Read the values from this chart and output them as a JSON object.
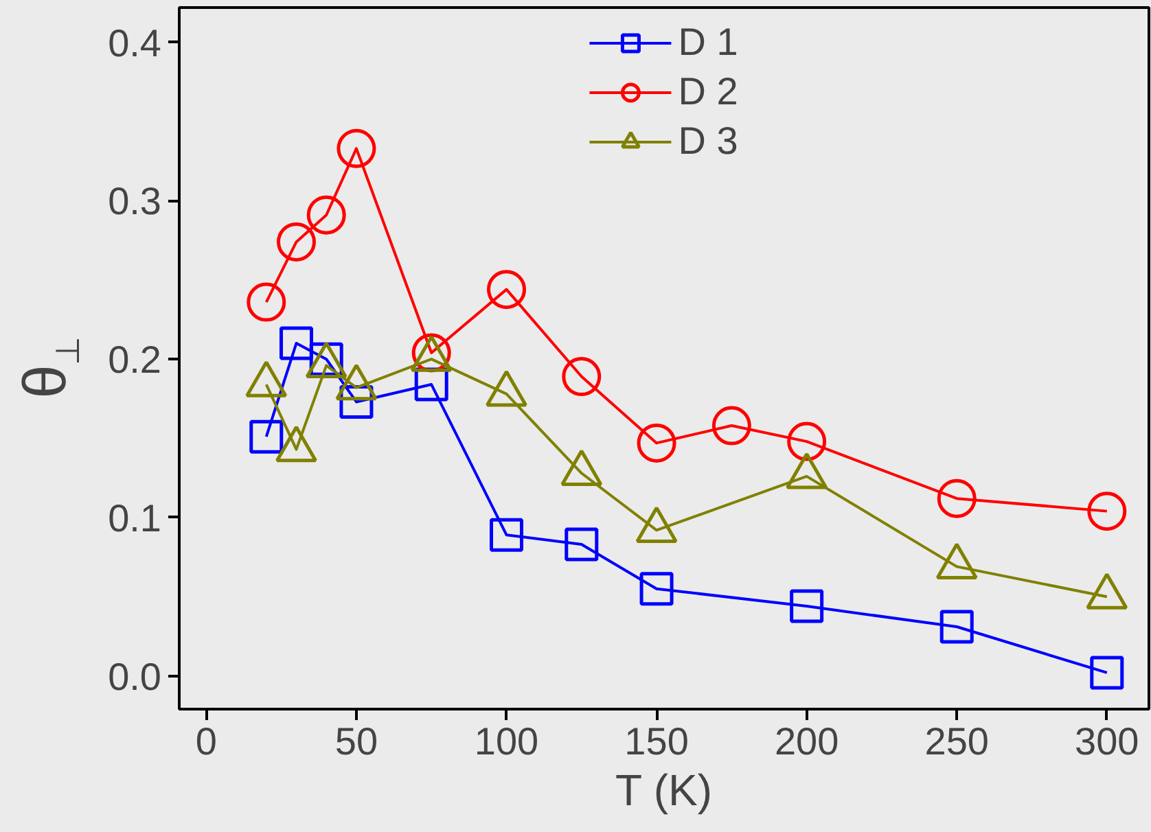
{
  "chart_data": {
    "type": "line",
    "xlabel": "T (K)",
    "ylabel": "θ$_{⊥}$",
    "x": [
      20,
      30,
      40,
      50,
      75,
      100,
      125,
      150,
      175,
      200,
      250,
      300
    ],
    "series": [
      {
        "name": "D 1",
        "color": "#0000ff",
        "marker": "square",
        "values": [
          0.151,
          0.21,
          0.2,
          0.173,
          0.184,
          0.089,
          0.083,
          0.055,
          null,
          0.044,
          0.031,
          0.002
        ]
      },
      {
        "name": "D 2",
        "color": "#ff0000",
        "marker": "circle",
        "values": [
          0.236,
          0.274,
          0.291,
          0.333,
          0.204,
          0.244,
          0.189,
          0.147,
          0.158,
          0.148,
          0.112,
          0.104
        ]
      },
      {
        "name": "D 3",
        "color": "#808000",
        "marker": "triangle",
        "values": [
          0.184,
          0.143,
          0.196,
          0.182,
          0.2,
          0.178,
          0.128,
          0.092,
          null,
          0.126,
          0.069,
          0.05
        ]
      }
    ],
    "xlim": [
      -9,
      314
    ],
    "ylim": [
      -0.021,
      0.422
    ],
    "xticks": [
      0,
      50,
      100,
      150,
      200,
      250,
      300
    ],
    "yticks": [
      {
        "value": 0,
        "label": "0.0"
      },
      0.1,
      0.2,
      0.3,
      0.4
    ],
    "grid": false,
    "legend": "top",
    "line_style": "solid"
  }
}
